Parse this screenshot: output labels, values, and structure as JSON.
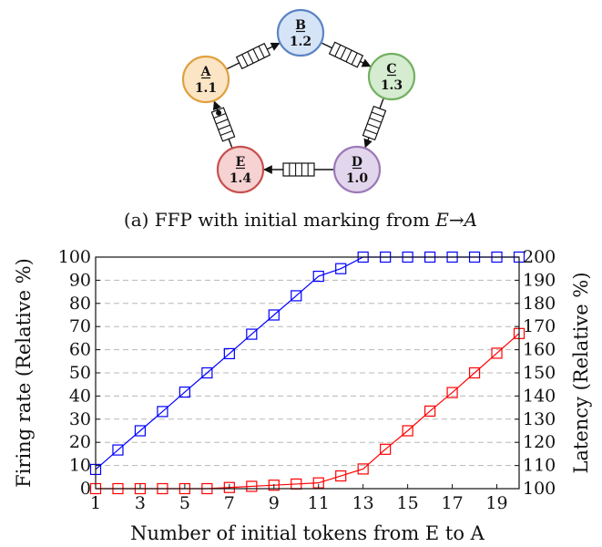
{
  "diagram": {
    "nodes": [
      {
        "id": "B",
        "name": "B",
        "value": "1.2",
        "fill": "#d6e4f7",
        "stroke": "#5b84c4"
      },
      {
        "id": "C",
        "name": "C",
        "value": "1.3",
        "fill": "#d5ecd0",
        "stroke": "#72b060"
      },
      {
        "id": "D",
        "name": "D",
        "value": "1.0",
        "fill": "#e2d6ec",
        "stroke": "#9c78b8"
      },
      {
        "id": "E",
        "name": "E",
        "value": "1.4",
        "fill": "#f6d2d2",
        "stroke": "#c85050"
      },
      {
        "id": "A",
        "name": "A",
        "value": "1.1",
        "fill": "#fbe5c4",
        "stroke": "#e0a040"
      }
    ],
    "edges": [
      {
        "from": "A",
        "to": "B"
      },
      {
        "from": "B",
        "to": "C"
      },
      {
        "from": "C",
        "to": "D"
      },
      {
        "from": "D",
        "to": "E"
      },
      {
        "from": "E",
        "to": "A",
        "tokens": 1
      }
    ],
    "caption_prefix": "(a) FFP with initial marking from ",
    "caption_math": "E→A"
  },
  "chart_data": {
    "type": "line",
    "xlabel": "Number of initial tokens from E to A",
    "ylabel_left": "Firing rate (Relative %)",
    "ylabel_right": "Latency (Relative %)",
    "x": [
      1,
      2,
      3,
      4,
      5,
      6,
      7,
      8,
      9,
      10,
      11,
      12,
      13,
      14,
      15,
      16,
      17,
      18,
      19,
      20
    ],
    "x_ticks": [
      1,
      3,
      5,
      7,
      9,
      11,
      13,
      15,
      17,
      19
    ],
    "xlim": [
      1,
      20
    ],
    "ylim_left": [
      0,
      100
    ],
    "ylim_right": [
      100,
      200
    ],
    "y_ticks_left": [
      0,
      10,
      20,
      30,
      40,
      50,
      60,
      70,
      80,
      90,
      100
    ],
    "y_ticks_right": [
      100,
      110,
      120,
      130,
      140,
      150,
      160,
      170,
      180,
      190,
      200
    ],
    "grid": "horizontal dashed",
    "marker": "square",
    "series": [
      {
        "color": "#0000ff",
        "axis": "left",
        "values": [
          8.3,
          16.7,
          25,
          33.3,
          41.7,
          50,
          58.3,
          66.7,
          75,
          83.3,
          91.7,
          95,
          100,
          100,
          100,
          100,
          100,
          100,
          100,
          100
        ]
      },
      {
        "color": "#ff0000",
        "axis": "right",
        "values": [
          100,
          100,
          100,
          100,
          100,
          100,
          100.5,
          101,
          101.5,
          102,
          102.5,
          105.5,
          108.5,
          117,
          125,
          133.5,
          141.5,
          150,
          158.5,
          167
        ]
      }
    ]
  }
}
